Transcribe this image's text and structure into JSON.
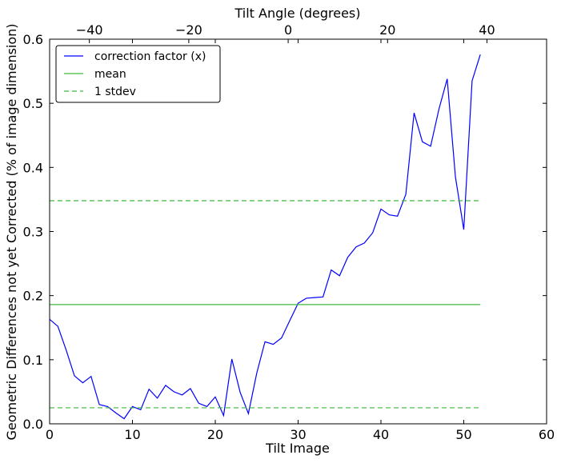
{
  "chart_data": {
    "type": "line",
    "xlabel": "Tilt Image",
    "ylabel": "Geometric Differences not yet Corrected (% of image dimension)",
    "top_xlabel": "Tilt Angle (degrees)",
    "xlim": [
      0,
      60
    ],
    "ylim": [
      0,
      0.6
    ],
    "top_xlim": [
      -48,
      52
    ],
    "x_ticks": [
      0,
      10,
      20,
      30,
      40,
      50,
      60
    ],
    "x_tick_labels": [
      "0",
      "10",
      "20",
      "30",
      "40",
      "50",
      "60"
    ],
    "y_ticks": [
      0.0,
      0.1,
      0.2,
      0.3,
      0.4,
      0.5,
      0.6
    ],
    "y_tick_labels": [
      "0.0",
      "0.1",
      "0.2",
      "0.3",
      "0.4",
      "0.5",
      "0.6"
    ],
    "top_ticks": [
      -40,
      -20,
      0,
      20,
      40
    ],
    "top_tick_labels": [
      "−40",
      "−20",
      "0",
      "20",
      "40"
    ],
    "grid": false,
    "legend_position": "top-left",
    "legend": [
      {
        "label": "correction factor (x)",
        "style": "solid",
        "color": "#0000ff"
      },
      {
        "label": "mean",
        "style": "solid",
        "color": "#3cb93c"
      },
      {
        "label": "1 stdev",
        "style": "dashed",
        "color": "#3cb93c"
      }
    ],
    "series": [
      {
        "name": "correction factor (x)",
        "color": "#0000ff",
        "x": [
          0,
          1,
          2,
          3,
          4,
          5,
          6,
          7,
          8,
          9,
          10,
          11,
          12,
          13,
          14,
          15,
          16,
          17,
          18,
          19,
          20,
          21,
          22,
          23,
          24,
          25,
          26,
          27,
          28,
          29,
          30,
          31,
          32,
          33,
          34,
          35,
          36,
          37,
          38,
          39,
          40,
          41,
          42,
          43,
          44,
          45,
          46,
          47,
          48,
          49,
          50,
          51,
          52
        ],
        "y": [
          0.163,
          0.152,
          0.115,
          0.075,
          0.064,
          0.074,
          0.03,
          0.027,
          0.017,
          0.008,
          0.027,
          0.022,
          0.054,
          0.04,
          0.06,
          0.05,
          0.045,
          0.055,
          0.032,
          0.027,
          0.042,
          0.013,
          0.101,
          0.049,
          0.016,
          0.079,
          0.128,
          0.124,
          0.134,
          0.161,
          0.188,
          0.196,
          0.197,
          0.198,
          0.24,
          0.231,
          0.26,
          0.276,
          0.282,
          0.298,
          0.335,
          0.326,
          0.324,
          0.358,
          0.485,
          0.44,
          0.433,
          0.491,
          0.538,
          0.385,
          0.303,
          0.535,
          0.576
        ]
      },
      {
        "name": "mean",
        "color": "#3cb93c",
        "x": [
          0,
          52
        ],
        "y": [
          0.186,
          0.186
        ]
      },
      {
        "name": "1 stdev",
        "color": "#3cb93c",
        "dashed": true,
        "upper": 0.348,
        "lower": 0.025,
        "x": [
          0,
          52
        ]
      }
    ]
  }
}
